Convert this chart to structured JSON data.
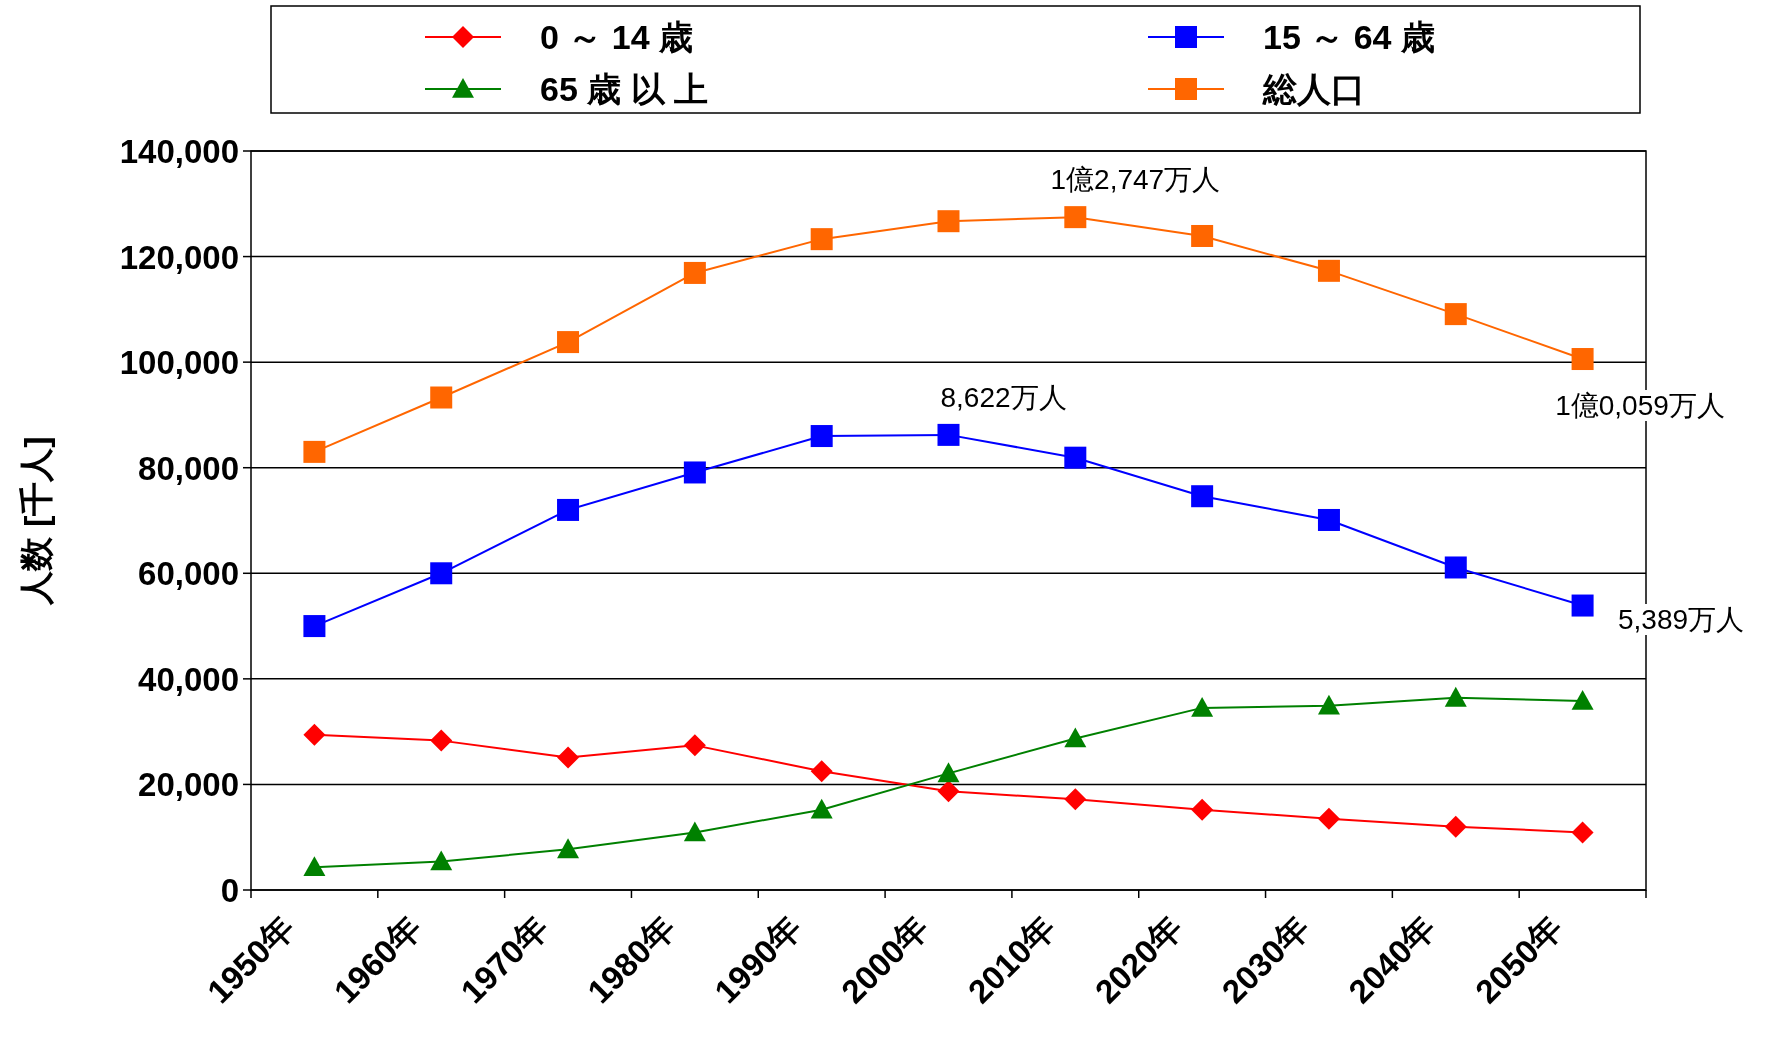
{
  "chart_data": {
    "type": "line",
    "ylabel": "人数 [千人]",
    "categories": [
      "1950年",
      "1960年",
      "1970年",
      "1980年",
      "1990年",
      "2000年",
      "2010年",
      "2020年",
      "2030年",
      "2040年",
      "2050年"
    ],
    "series": [
      {
        "name": "0 ～ 14 歳",
        "color": "#ff0000",
        "marker": "diamond",
        "values": [
          29400,
          28300,
          25100,
          27400,
          22500,
          18700,
          17200,
          15200,
          13500,
          12000,
          10900
        ]
      },
      {
        "name": "15 ～ 64 歳",
        "color": "#0000ff",
        "marker": "square",
        "values": [
          50000,
          60000,
          72000,
          79100,
          86000,
          86220,
          81900,
          74600,
          70100,
          61100,
          53890
        ]
      },
      {
        "name": "65 歳 以 上",
        "color": "#008000",
        "marker": "triangle",
        "values": [
          4300,
          5400,
          7700,
          10900,
          15200,
          22100,
          28700,
          34500,
          34900,
          36400,
          35800
        ]
      },
      {
        "name": "総人口",
        "color": "#ff6600",
        "marker": "square",
        "values": [
          83000,
          93300,
          103800,
          116900,
          123300,
          126700,
          127470,
          123900,
          117300,
          109100,
          100590
        ]
      }
    ],
    "ylim": [
      0,
      140000
    ],
    "yticks": [
      {
        "value": 0,
        "label": "0"
      },
      {
        "value": 20000,
        "label": "20,000"
      },
      {
        "value": 40000,
        "label": "40,000"
      },
      {
        "value": 60000,
        "label": "60,000"
      },
      {
        "value": 80000,
        "label": "80,000"
      },
      {
        "value": 100000,
        "label": "100,000"
      },
      {
        "value": 120000,
        "label": "120,000"
      },
      {
        "value": 140000,
        "label": "140,000"
      }
    ],
    "grid": "y",
    "legend": "top",
    "annotations": [
      {
        "text": "1億2,747万人",
        "x": "2010年",
        "y": 127470
      },
      {
        "text": "8,622万人",
        "x": "2000年",
        "y": 86220
      },
      "1億0,059万人",
      "5,389万人"
    ]
  }
}
